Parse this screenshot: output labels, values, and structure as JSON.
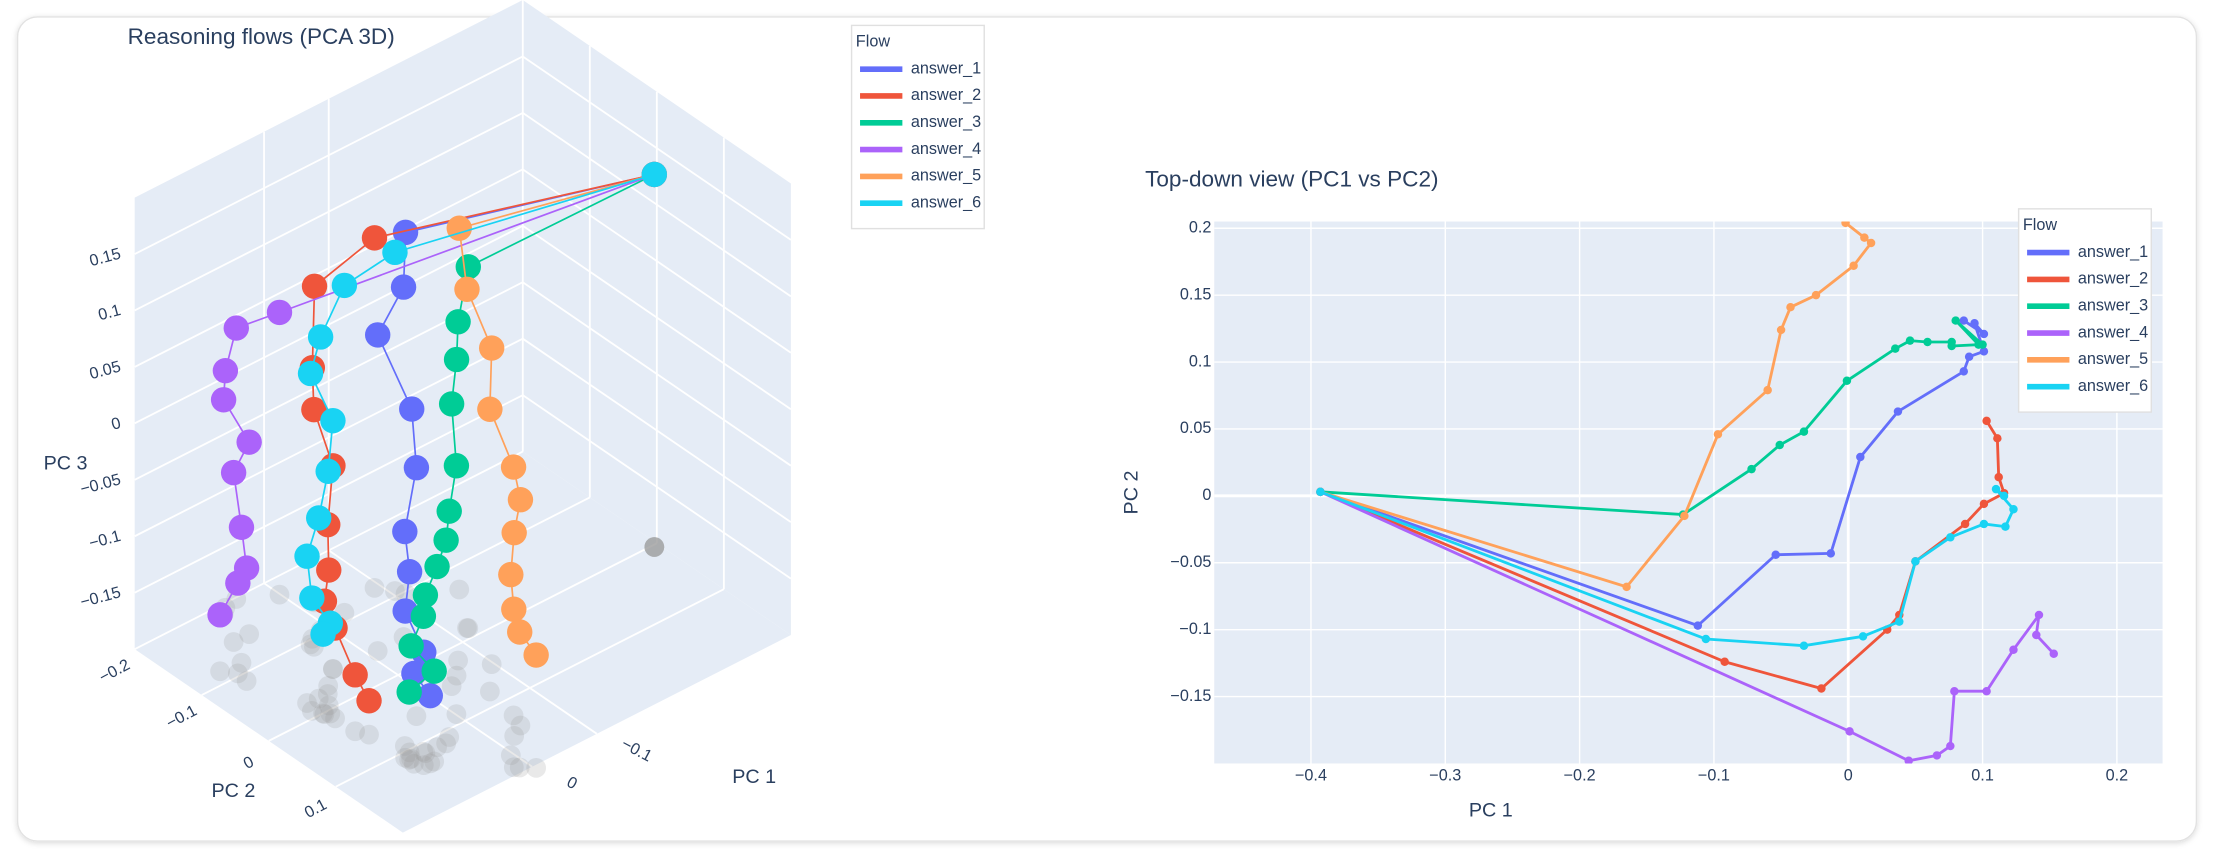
{
  "chart_data": [
    {
      "type": "scatter3d",
      "title": "Reasoning flows (PCA 3D)",
      "xlabel": "PC 1",
      "ylabel": "PC 2",
      "zlabel": "PC 3",
      "legend_title": "Flow",
      "xlim": [
        -0.4,
        0.2
      ],
      "ylim": [
        -0.2,
        0.2
      ],
      "zlim": [
        -0.2,
        0.2
      ],
      "xticks": [
        {
          "value": -0.1,
          "label": "−0.1"
        },
        0
      ],
      "yticks": [
        {
          "value": -0.2,
          "label": "−0.2"
        },
        {
          "value": -0.1,
          "label": "−0.1"
        },
        0,
        0.1
      ],
      "zticks": [
        {
          "value": -0.15,
          "label": "−0.15"
        },
        {
          "value": -0.1,
          "label": "−0.1"
        },
        {
          "value": -0.05,
          "label": "−0.05"
        },
        0,
        0.05,
        0.1,
        0.15
      ],
      "series": [
        {
          "name": "answer_1",
          "color": "#636efa",
          "x": [
            -0.393,
            -0.112,
            -0.054,
            -0.013,
            0.009,
            0.037,
            0.086,
            0.09,
            0.101,
            0.094,
            0.101,
            0.086
          ],
          "y": [
            0.003,
            -0.097,
            -0.044,
            -0.043,
            0.029,
            0.063,
            0.093,
            0.104,
            0.108,
            0.129,
            0.121,
            0.131
          ],
          "z": [
            0.13,
            0.12,
            0.11,
            0.08,
            0.05,
            0.02,
            -0.01,
            -0.04,
            -0.07,
            -0.1,
            -0.12,
            -0.14
          ]
        },
        {
          "name": "answer_2",
          "color": "#ef553b",
          "x": [
            -0.393,
            -0.092,
            -0.02,
            0.029,
            0.038,
            0.05,
            0.087,
            0.101,
            0.116,
            0.112,
            0.111,
            0.103
          ],
          "y": [
            0.003,
            -0.124,
            -0.144,
            -0.1,
            -0.089,
            -0.049,
            -0.021,
            -0.006,
            0.002,
            0.014,
            0.043,
            0.056
          ],
          "z": [
            0.13,
            0.11,
            0.08,
            0.04,
            0.01,
            -0.02,
            -0.05,
            -0.08,
            -0.1,
            -0.12,
            -0.15,
            -0.17
          ]
        },
        {
          "name": "answer_3",
          "color": "#00cc96",
          "x": [
            -0.393,
            -0.123,
            -0.072,
            -0.051,
            -0.033,
            -0.001,
            0.035,
            0.046,
            0.059,
            0.077,
            0.077,
            0.097,
            0.08,
            0.1
          ],
          "y": [
            0.003,
            -0.014,
            0.02,
            0.038,
            0.048,
            0.086,
            0.11,
            0.116,
            0.115,
            0.115,
            0.112,
            0.113,
            0.131,
            0.113
          ],
          "z": [
            0.13,
            0.12,
            0.1,
            0.08,
            0.05,
            0.02,
            0,
            -0.02,
            -0.04,
            -0.06,
            -0.08,
            -0.1,
            -0.12,
            -0.14
          ]
        },
        {
          "name": "answer_4",
          "color": "#ab63fa",
          "x": [
            -0.393,
            0.001,
            0.045,
            0.066,
            0.076,
            0.079,
            0.103,
            0.123,
            0.142,
            0.14,
            0.153
          ],
          "y": [
            0.003,
            -0.176,
            -0.198,
            -0.194,
            -0.187,
            -0.146,
            -0.146,
            -0.115,
            -0.089,
            -0.104,
            -0.118
          ],
          "z": [
            0.13,
            0.05,
            0.04,
            0.01,
            -0.01,
            -0.03,
            -0.05,
            -0.08,
            -0.1,
            -0.12,
            -0.15
          ]
        },
        {
          "name": "answer_5",
          "color": "#ffa15a",
          "x": [
            -0.393,
            -0.165,
            -0.122,
            -0.097,
            -0.06,
            -0.05,
            -0.043,
            -0.024,
            0.004,
            0.017,
            0.012,
            -0.002
          ],
          "y": [
            0.003,
            -0.068,
            -0.015,
            0.046,
            0.079,
            0.124,
            0.141,
            0.15,
            0.172,
            0.189,
            0.193,
            0.204
          ],
          "z": [
            0.13,
            0.12,
            0.1,
            0.08,
            0.05,
            0.02,
            0,
            -0.02,
            -0.04,
            -0.06,
            -0.08,
            -0.1
          ]
        },
        {
          "name": "answer_6",
          "color": "#19d3f3",
          "x": [
            -0.393,
            -0.106,
            -0.033,
            0.011,
            0.038,
            0.05,
            0.076,
            0.101,
            0.117,
            0.123,
            0.11,
            0.116
          ],
          "y": [
            0.003,
            -0.107,
            -0.112,
            -0.105,
            -0.094,
            -0.049,
            -0.031,
            -0.021,
            -0.023,
            -0.01,
            0.005,
            0
          ],
          "z": [
            0.13,
            0.1,
            0.09,
            0.06,
            0.04,
            0.02,
            -0.01,
            -0.04,
            -0.07,
            -0.1,
            -0.12,
            -0.13
          ]
        }
      ]
    },
    {
      "type": "line",
      "title": "Top-down view (PC1 vs PC2)",
      "xlabel": "PC 1",
      "ylabel": "PC 2",
      "legend_title": "Flow",
      "grid": true,
      "xlim": [
        -0.472,
        0.234
      ],
      "ylim": [
        -0.2,
        0.205
      ],
      "xticks": [
        {
          "value": -0.4,
          "label": "−0.4"
        },
        {
          "value": -0.3,
          "label": "−0.3"
        },
        {
          "value": -0.2,
          "label": "−0.2"
        },
        {
          "value": -0.1,
          "label": "−0.1"
        },
        0,
        0.1,
        0.2
      ],
      "yticks": [
        {
          "value": -0.15,
          "label": "−0.15"
        },
        {
          "value": -0.1,
          "label": "−0.1"
        },
        {
          "value": -0.05,
          "label": "−0.05"
        },
        0,
        0.05,
        0.1,
        0.15,
        0.2
      ],
      "series": [
        {
          "name": "answer_1",
          "color": "#636efa",
          "x": [
            -0.393,
            -0.112,
            -0.054,
            -0.013,
            0.009,
            0.037,
            0.086,
            0.09,
            0.101,
            0.094,
            0.101,
            0.086
          ],
          "y": [
            0.003,
            -0.097,
            -0.044,
            -0.043,
            0.029,
            0.063,
            0.093,
            0.104,
            0.108,
            0.129,
            0.121,
            0.131
          ]
        },
        {
          "name": "answer_2",
          "color": "#ef553b",
          "x": [
            -0.393,
            -0.092,
            -0.02,
            0.029,
            0.038,
            0.05,
            0.087,
            0.101,
            0.116,
            0.112,
            0.111,
            0.103
          ],
          "y": [
            0.003,
            -0.124,
            -0.144,
            -0.1,
            -0.089,
            -0.049,
            -0.021,
            -0.006,
            0.002,
            0.014,
            0.043,
            0.056
          ]
        },
        {
          "name": "answer_3",
          "color": "#00cc96",
          "x": [
            -0.393,
            -0.123,
            -0.072,
            -0.051,
            -0.033,
            -0.001,
            0.035,
            0.046,
            0.059,
            0.077,
            0.077,
            0.097,
            0.08,
            0.1
          ],
          "y": [
            0.003,
            -0.014,
            0.02,
            0.038,
            0.048,
            0.086,
            0.11,
            0.116,
            0.115,
            0.115,
            0.112,
            0.113,
            0.131,
            0.113
          ]
        },
        {
          "name": "answer_4",
          "color": "#ab63fa",
          "x": [
            -0.393,
            0.001,
            0.045,
            0.066,
            0.076,
            0.079,
            0.103,
            0.123,
            0.142,
            0.14,
            0.153
          ],
          "y": [
            0.003,
            -0.176,
            -0.198,
            -0.194,
            -0.187,
            -0.146,
            -0.146,
            -0.115,
            -0.089,
            -0.104,
            -0.118
          ]
        },
        {
          "name": "answer_5",
          "color": "#ffa15a",
          "x": [
            -0.393,
            -0.165,
            -0.122,
            -0.097,
            -0.06,
            -0.05,
            -0.043,
            -0.024,
            0.004,
            0.017,
            0.012,
            -0.002
          ],
          "y": [
            0.003,
            -0.068,
            -0.015,
            0.046,
            0.079,
            0.124,
            0.141,
            0.15,
            0.172,
            0.189,
            0.193,
            0.204
          ]
        },
        {
          "name": "answer_6",
          "color": "#19d3f3",
          "x": [
            -0.393,
            -0.106,
            -0.033,
            0.011,
            0.038,
            0.05,
            0.076,
            0.101,
            0.117,
            0.123,
            0.11,
            0.116
          ],
          "y": [
            0.003,
            -0.107,
            -0.112,
            -0.105,
            -0.094,
            -0.049,
            -0.031,
            -0.021,
            -0.023,
            -0.01,
            0.005,
            0
          ]
        }
      ]
    }
  ]
}
